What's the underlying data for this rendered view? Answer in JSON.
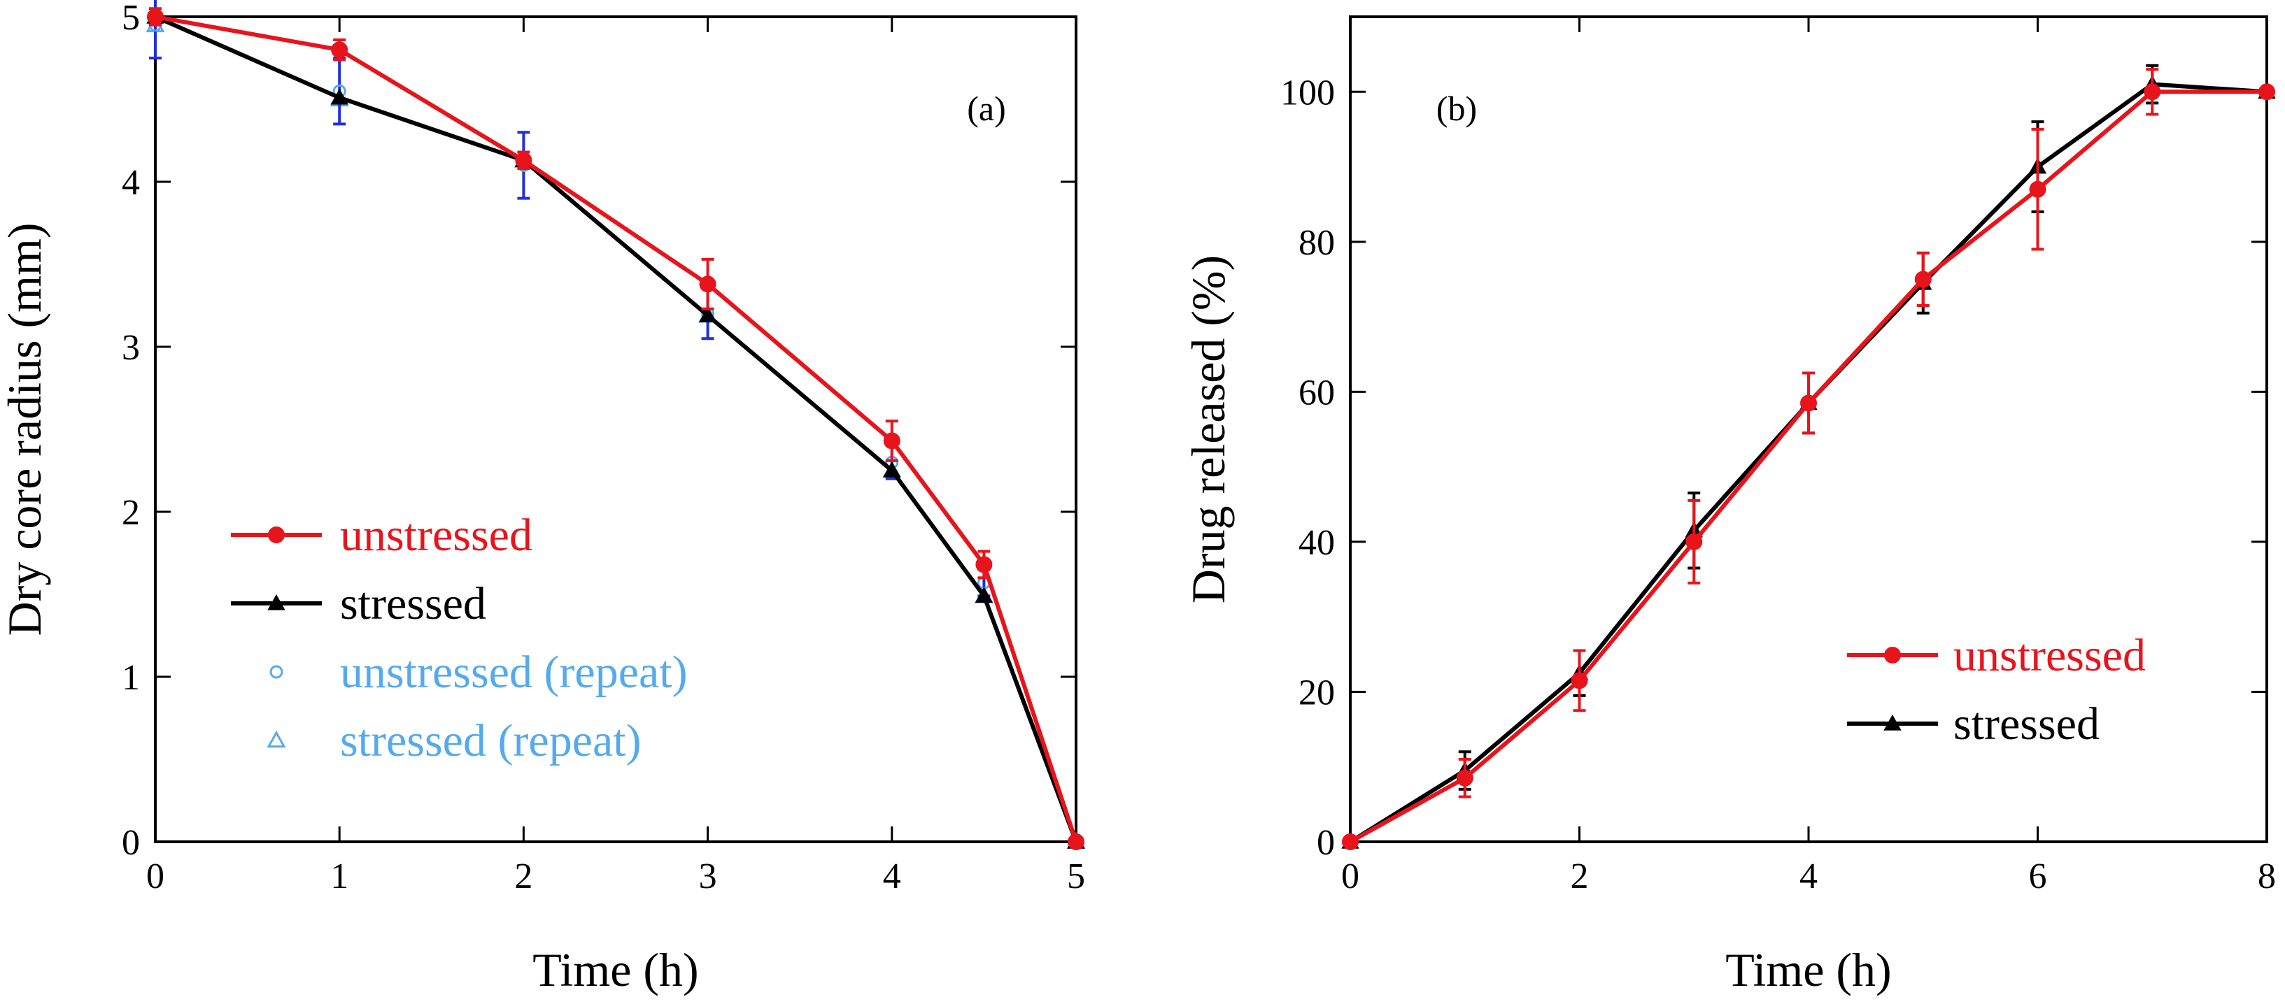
{
  "chart_data": [
    {
      "type": "line",
      "panel_label": "(a)",
      "xlabel": "Time (h)",
      "ylabel": "Dry core radius (mm)",
      "xlim": [
        0,
        5
      ],
      "ylim": [
        0,
        5
      ],
      "xticks": [
        0,
        1,
        2,
        3,
        4,
        5
      ],
      "yticks": [
        0,
        1,
        2,
        3,
        4,
        5
      ],
      "legend_position": "left",
      "series": [
        {
          "name": "unstressed",
          "color": "#e8141c",
          "marker": "circle",
          "x": [
            0,
            1,
            2,
            3,
            4,
            4.5,
            5
          ],
          "y": [
            5.0,
            4.8,
            4.13,
            3.38,
            2.43,
            1.68,
            0.0
          ],
          "error": [
            0.05,
            0.06,
            0.05,
            0.15,
            0.12,
            0.08,
            0.0
          ]
        },
        {
          "name": "stressed",
          "color": "#000000",
          "marker": "triangle",
          "x": [
            0,
            1,
            2,
            3,
            4,
            4.5,
            5
          ],
          "y": [
            5.0,
            4.51,
            4.13,
            3.19,
            2.25,
            1.49,
            0.0
          ],
          "error": [
            0.0,
            0.0,
            0.0,
            0.0,
            0.0,
            0.0,
            0.0
          ]
        },
        {
          "name": "unstressed (repeat)",
          "color": "#55aaee",
          "marker": "open-circle",
          "x": [
            0,
            1,
            2,
            3,
            4,
            4.5,
            5
          ],
          "y": [
            4.95,
            4.55,
            4.1,
            3.2,
            2.3,
            1.57,
            0.0
          ],
          "error": [
            0.2,
            0.2,
            0.2,
            0.15,
            0.1,
            0.08,
            0.0
          ],
          "error_color": "#1f2fe0"
        },
        {
          "name": "stressed (repeat)",
          "color": "#55aaee",
          "marker": "open-triangle",
          "x": [
            0,
            1,
            2,
            3,
            4,
            4.5,
            5
          ],
          "y": [
            4.95,
            4.5,
            4.13,
            3.19,
            2.25,
            1.49,
            0.0
          ],
          "error": [
            0.0,
            0.0,
            0.0,
            0.0,
            0.0,
            0.0,
            0.0
          ]
        }
      ]
    },
    {
      "type": "line",
      "panel_label": "(b)",
      "xlabel": "Time (h)",
      "ylabel": "Drug released (%)",
      "xlim": [
        0,
        8
      ],
      "ylim": [
        0,
        110
      ],
      "xticks": [
        0,
        2,
        4,
        6,
        8
      ],
      "yticks": [
        0,
        20,
        40,
        60,
        80,
        100
      ],
      "legend_position": "bottom-right",
      "series": [
        {
          "name": "unstressed",
          "color": "#e8141c",
          "marker": "circle",
          "x": [
            0,
            1,
            2,
            3,
            4,
            5,
            6,
            7,
            8
          ],
          "y": [
            0,
            8.5,
            21.5,
            40.0,
            58.5,
            75.0,
            87.0,
            100.0,
            100.0
          ],
          "error": [
            0,
            2.5,
            4.0,
            5.5,
            4.0,
            3.5,
            8.0,
            3.0,
            0
          ]
        },
        {
          "name": "stressed",
          "color": "#000000",
          "marker": "triangle",
          "x": [
            0,
            1,
            2,
            3,
            4,
            5,
            6,
            7,
            8
          ],
          "y": [
            0,
            9.5,
            22.5,
            41.5,
            58.5,
            74.5,
            90.0,
            101.0,
            100.0
          ],
          "error": [
            0,
            2.5,
            3.0,
            5.0,
            4.0,
            4.0,
            6.0,
            2.5,
            0
          ]
        }
      ]
    }
  ]
}
